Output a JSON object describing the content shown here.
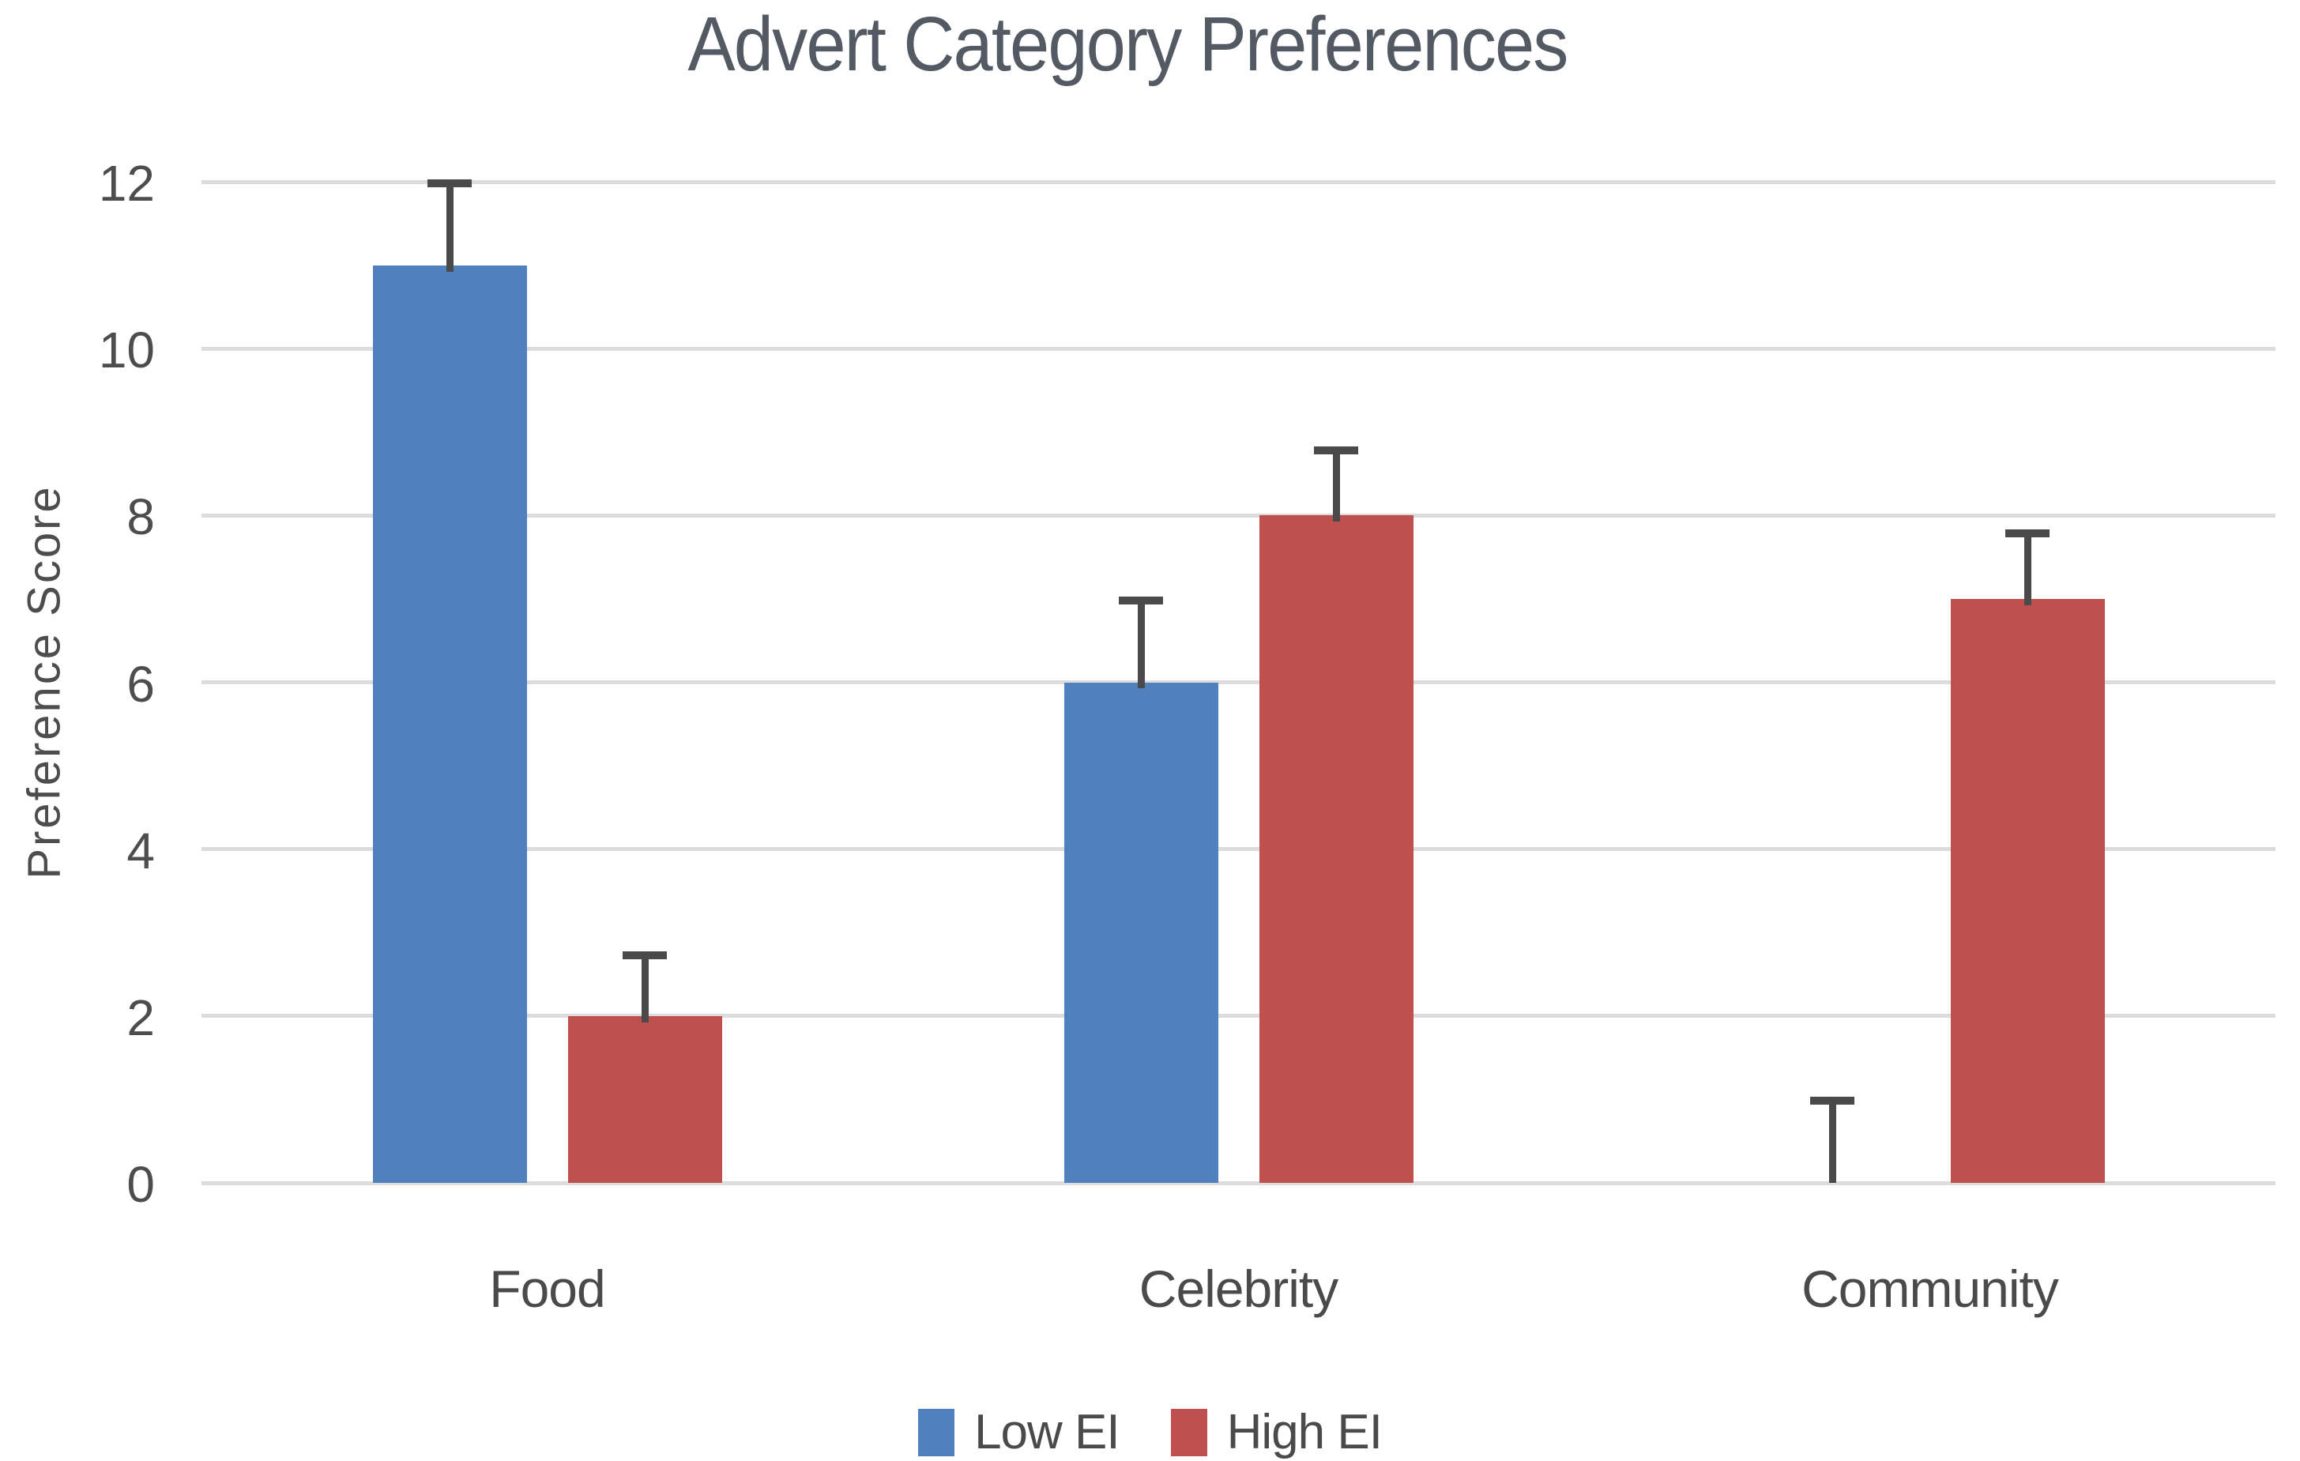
{
  "chart_data": {
    "type": "bar",
    "title": "Advert Category Preferences",
    "xlabel": "",
    "ylabel": "Preference Score",
    "categories": [
      "Food",
      "Celebrity",
      "Community"
    ],
    "series": [
      {
        "name": "Low EI",
        "color": "#4E81BD",
        "values": [
          11,
          6,
          0
        ],
        "errors_plus": [
          1,
          1,
          1
        ]
      },
      {
        "name": "High EI",
        "color": "#C0504D",
        "values": [
          2,
          8,
          7
        ],
        "errors_plus": [
          0.75,
          0.8,
          0.8
        ]
      }
    ],
    "ylim": [
      0,
      12
    ],
    "yticks": [
      0,
      2,
      4,
      6,
      8,
      10,
      12
    ],
    "grid": true,
    "gridline_color": "#DCDCDC",
    "error_bar_color": "#4a4a4a",
    "legend_position": "bottom"
  }
}
